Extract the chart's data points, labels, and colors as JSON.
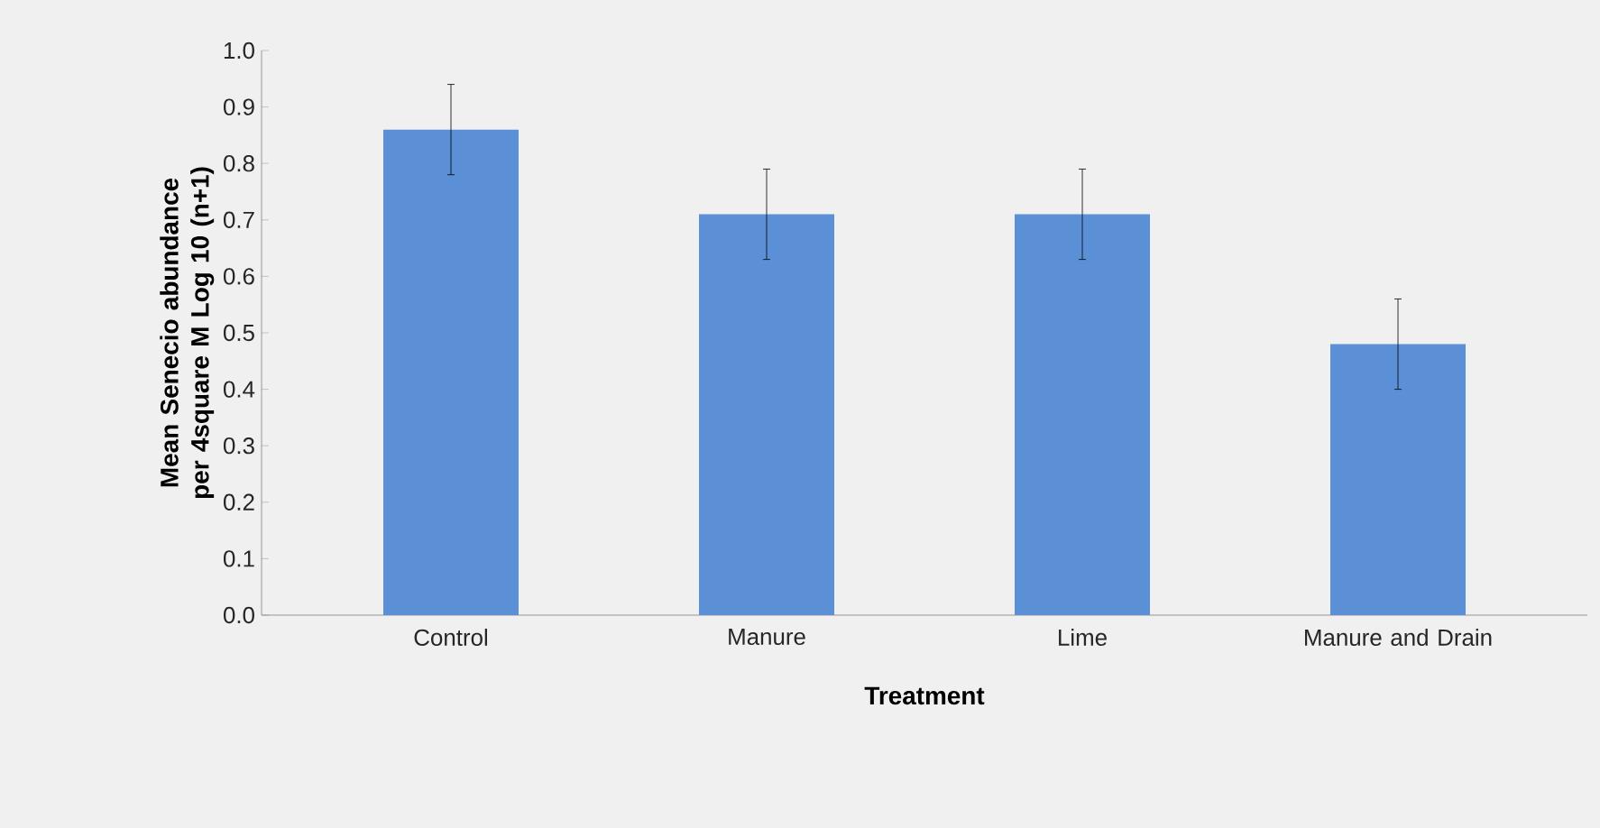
{
  "chart_data": {
    "type": "bar",
    "xlabel": "Treatment",
    "ylabel": "Mean Senecio abundance per 4square M Log 10 (n+1)",
    "categories": [
      "Control",
      "Manure",
      "Lime",
      "Manure and Drain"
    ],
    "values": [
      0.86,
      0.71,
      0.71,
      0.48
    ],
    "errors": [
      0.08,
      0.08,
      0.08,
      0.08
    ],
    "color": "#5b8fd6",
    "ylim": [
      0,
      1
    ],
    "yticks": [
      {
        "value": 0,
        "label": "0.0"
      },
      {
        "value": 0.1,
        "label": "0.1"
      },
      {
        "value": 0.2,
        "label": "0.2"
      },
      {
        "value": 0.3,
        "label": "0.3"
      },
      {
        "value": 0.4,
        "label": "0.4"
      },
      {
        "value": 0.5,
        "label": "0.5"
      },
      {
        "value": 0.6,
        "label": "0.6"
      },
      {
        "value": 0.7,
        "label": "0.7"
      },
      {
        "value": 0.8,
        "label": "0.8"
      },
      {
        "value": 0.9,
        "label": "0.9"
      },
      {
        "value": 1.0,
        "label": "1.0"
      }
    ],
    "grid": false
  }
}
